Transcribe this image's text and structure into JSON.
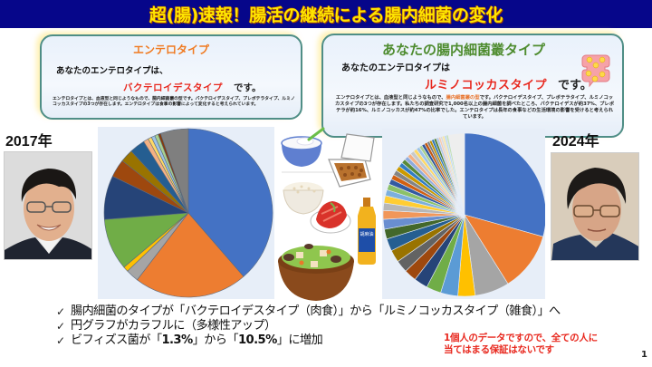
{
  "title": "超(腸)速報！腸活の継続による腸内細菌の変化",
  "colors": {
    "title_bg": "#06068a",
    "title_text": "#ffe600",
    "accent_red": "#e8281e",
    "card_border": "#4f8e86"
  },
  "card_2017": {
    "heading": "エンテロタイプ",
    "line1": "あなたのエンテロタイプは、",
    "type_name": "バクテロイデスタイプ",
    "desu": "です。",
    "body": "エンテロタイプとは、血液型と同じようなもので、腸内細菌叢の型です。バクテロイデスタイプ、プレボテラタイプ、ルミノコッカスタイプの3つが存在します。エンテロタイプは食事の影響によって変化すると考えられています。"
  },
  "card_2024": {
    "heading": "あなたの腸内細菌叢タイプ",
    "line1": "あなたのエンテロタイプは",
    "type_name": "ルミノコッカスタイプ",
    "desu": "です。",
    "body_pre": "エンテロタイプとは、血液型と同じようなもので、",
    "body_highlight": "腸内細菌叢の型",
    "body_post": "です。バクテロイデスタイプ、プレボテラタイプ、ルミノコッカスタイプの3つが存在します。私たちの調査研究で1,000名以上の腸内細菌を調べたところ、バクテロイデスが約37%、プレボテラが約16%、ルミノコッカスが約47%の比率でした。エンテロタイプは長年の食事などの生活環境の影響を受けると考えられています。"
  },
  "year_2017": "2017年",
  "year_2024": "2024年",
  "food_items": [
    "yogurt-icon",
    "natto-icon",
    "rice-icon",
    "kimchi-icon",
    "sesame-oil-icon",
    "nabe-icon"
  ],
  "oil_label": "胡麻油",
  "bullets": [
    {
      "check": "✓",
      "text": "腸内細菌のタイプが「バクテロイデスタイプ（肉食）」から「ルミノコッカスタイプ（雑食）」へ"
    },
    {
      "check": "✓",
      "text": "円グラフがカラフルに（多様性アップ）"
    },
    {
      "check": "✓",
      "pre": "ビフィズス菌が「",
      "v1": "1.3%",
      "mid": "」から「",
      "v2": "10.5%",
      "post": "」に増加"
    }
  ],
  "disclaimer": [
    "1個人のデータですので、全ての人に",
    "当てはまる保証はないです"
  ],
  "page_number": "1",
  "chart_data": [
    {
      "type": "pie",
      "title": "2017年",
      "start_angle": "12 o'clock, clockwise",
      "values": [
        39,
        22,
        2.5,
        1,
        10,
        8.5,
        3.5,
        2.5,
        3,
        1,
        0.7,
        0.7,
        0.7,
        0.5,
        5.4
      ],
      "colors": [
        "#4472c4",
        "#ed7d31",
        "#a5a5a5",
        "#ffc000",
        "#70ad47",
        "#264478",
        "#9e480e",
        "#997300",
        "#255e91",
        "#f4b183",
        "#ffd966",
        "#9dc3e6",
        "#a9d18e",
        "#843c0c",
        "#7f7f7f"
      ]
    },
    {
      "type": "pie",
      "title": "2024年",
      "start_angle": "12 o'clock, clockwise",
      "values": [
        30,
        12,
        7,
        3.5,
        3.5,
        3,
        2.8,
        2.5,
        2.5,
        2.5,
        2.5,
        2,
        2,
        1.8,
        1.5,
        1.5,
        1.2,
        1.2,
        1.1,
        1,
        1,
        1,
        0.9,
        0.9,
        0.8,
        0.8,
        0.8,
        0.7,
        0.7,
        0.6,
        0.6,
        0.6,
        0.5,
        0.5,
        0.5,
        0.5,
        0.5,
        0.4,
        0.4,
        0.4,
        0.4,
        0.4,
        3.3
      ],
      "colors": [
        "#4472c4",
        "#ed7d31",
        "#a5a5a5",
        "#ffc000",
        "#5b9bd5",
        "#70ad47",
        "#264478",
        "#9e480e",
        "#636363",
        "#997300",
        "#255e91",
        "#43682b",
        "#698ed0",
        "#f1975a",
        "#b7b7b7",
        "#ffcd33",
        "#7cafdd",
        "#8cc168",
        "#335aa1",
        "#d26012",
        "#848484",
        "#cc9a00",
        "#327dc2",
        "#5a8a39",
        "#8faadc",
        "#f4b183",
        "#c9c9c9",
        "#ffd966",
        "#9dc3e6",
        "#a9d18e",
        "#2f5597",
        "#c55a11",
        "#7b7b7b",
        "#bf9000",
        "#2e75b6",
        "#548235",
        "#b4c7e7",
        "#f8cbad",
        "#dbdbdb",
        "#ffe699",
        "#bdd7ee",
        "#c5e0b4",
        "#eeeeee"
      ]
    }
  ]
}
